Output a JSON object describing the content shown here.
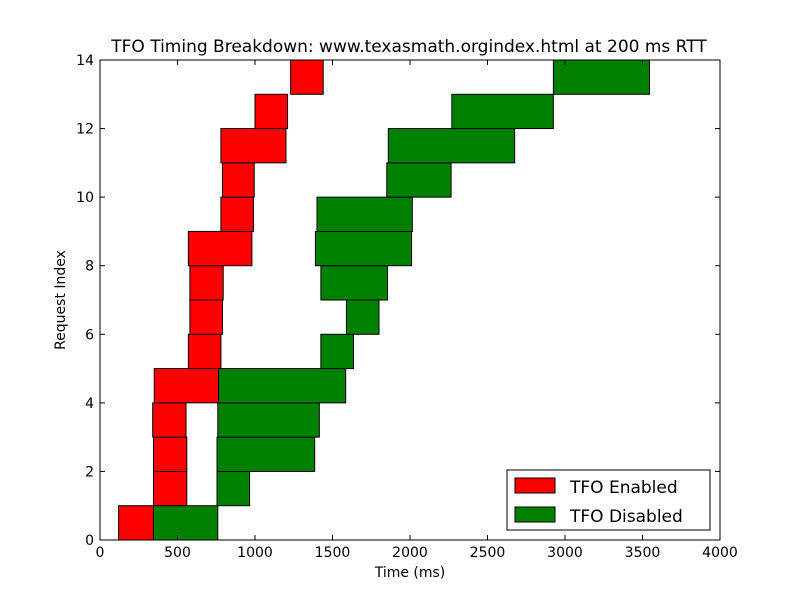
{
  "chart_data": {
    "type": "bar",
    "orientation": "horizontal-gantt",
    "title": "TFO Timing Breakdown: www.texasmath.orgindex.html at 200 ms RTT",
    "xlabel": "Time (ms)",
    "ylabel": "Request Index",
    "xlim": [
      0,
      4000
    ],
    "ylim": [
      0,
      14
    ],
    "xticks": [
      0,
      500,
      1000,
      1500,
      2000,
      2500,
      3000,
      3500,
      4000
    ],
    "yticks": [
      0,
      2,
      4,
      6,
      8,
      10,
      12,
      14
    ],
    "grid": false,
    "legend_position": "bottom-right",
    "series": [
      {
        "name": "TFO Enabled",
        "color": "#ff0000",
        "bars": [
          {
            "index": 0,
            "start": 120,
            "end": 345
          },
          {
            "index": 1,
            "start": 345,
            "end": 560
          },
          {
            "index": 2,
            "start": 345,
            "end": 560
          },
          {
            "index": 3,
            "start": 340,
            "end": 555
          },
          {
            "index": 4,
            "start": 350,
            "end": 765
          },
          {
            "index": 5,
            "start": 570,
            "end": 780
          },
          {
            "index": 6,
            "start": 580,
            "end": 790
          },
          {
            "index": 7,
            "start": 580,
            "end": 795
          },
          {
            "index": 8,
            "start": 570,
            "end": 980
          },
          {
            "index": 9,
            "start": 780,
            "end": 990
          },
          {
            "index": 10,
            "start": 790,
            "end": 995
          },
          {
            "index": 11,
            "start": 780,
            "end": 1200
          },
          {
            "index": 12,
            "start": 1000,
            "end": 1210
          },
          {
            "index": 13,
            "start": 1230,
            "end": 1440
          }
        ]
      },
      {
        "name": "TFO Disabled",
        "color": "#008000",
        "bars": [
          {
            "index": 0,
            "start": 345,
            "end": 760
          },
          {
            "index": 1,
            "start": 755,
            "end": 965
          },
          {
            "index": 2,
            "start": 755,
            "end": 1385
          },
          {
            "index": 3,
            "start": 760,
            "end": 1415
          },
          {
            "index": 4,
            "start": 765,
            "end": 1585
          },
          {
            "index": 5,
            "start": 1425,
            "end": 1635
          },
          {
            "index": 6,
            "start": 1590,
            "end": 1800
          },
          {
            "index": 7,
            "start": 1425,
            "end": 1855
          },
          {
            "index": 8,
            "start": 1390,
            "end": 2010
          },
          {
            "index": 9,
            "start": 1400,
            "end": 2015
          },
          {
            "index": 10,
            "start": 1850,
            "end": 2265
          },
          {
            "index": 11,
            "start": 1860,
            "end": 2675
          },
          {
            "index": 12,
            "start": 2270,
            "end": 2925
          },
          {
            "index": 13,
            "start": 2925,
            "end": 3545
          }
        ]
      }
    ]
  }
}
